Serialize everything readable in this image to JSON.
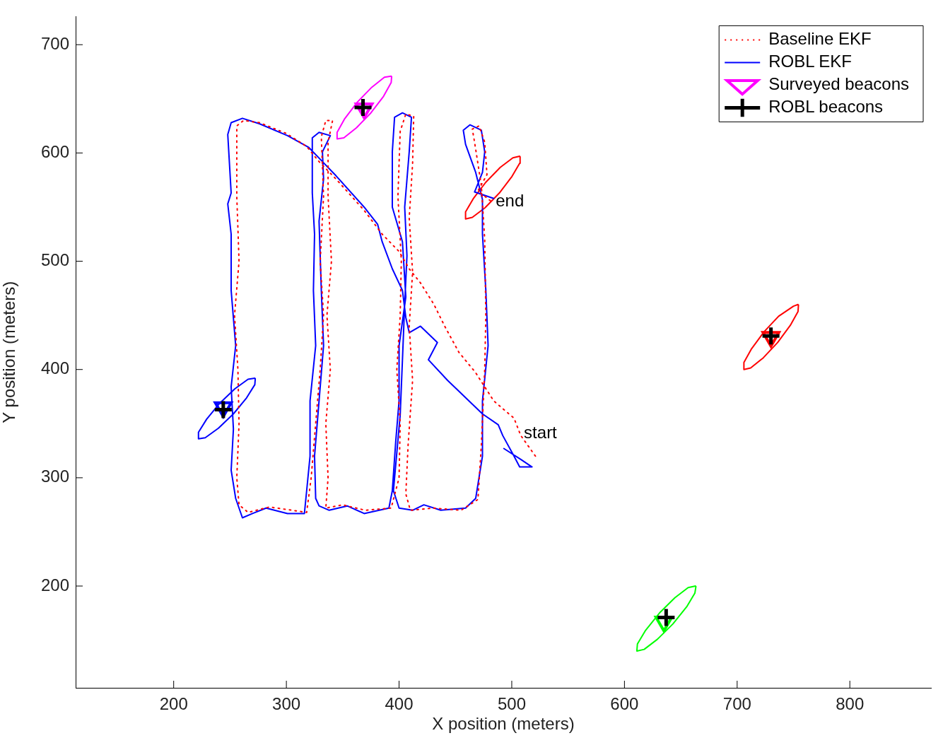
{
  "chart_data": {
    "type": "line",
    "xlabel": "X position (meters)",
    "ylabel": "Y position (meters)",
    "xlim": [
      113,
      872
    ],
    "ylim": [
      106,
      726
    ],
    "xticks": [
      200,
      300,
      400,
      500,
      600,
      700,
      800
    ],
    "yticks": [
      200,
      300,
      400,
      500,
      600,
      700
    ],
    "legend": "top right",
    "annotations": [
      {
        "text": "end",
        "x": 482,
        "y": 555
      },
      {
        "text": "start",
        "x": 507,
        "y": 341
      }
    ],
    "series": [
      {
        "name": "Baseline EKF",
        "line_style": "dotted",
        "color": "#ff0000",
        "x": [
          521,
          508,
          502,
          484,
          468,
          453,
          440,
          431,
          419,
          409,
          400,
          385,
          369,
          344,
          329,
          318,
          300,
          276,
          262,
          256,
          256,
          258,
          254,
          257,
          258,
          256,
          258,
          266,
          285,
          305,
          318,
          322,
          326,
          330,
          333,
          330,
          333,
          331,
          335,
          341,
          337,
          337,
          340,
          336,
          339,
          335,
          337,
          335,
          350,
          370,
          393,
          400,
          401,
          398,
          401,
          402,
          399,
          401,
          406,
          413,
          412,
          409,
          412,
          409,
          412,
          408,
          406,
          410,
          430,
          455,
          470,
          473,
          476,
          477,
          476,
          473,
          467,
          465,
          471,
          476,
          478,
          470,
          482
        ],
        "values": [
          320,
          339,
          355,
          371,
          397,
          416,
          441,
          460,
          480,
          493,
          509,
          525,
          547,
          576,
          592,
          606,
          618,
          628,
          630,
          625,
          560,
          500,
          450,
          400,
          350,
          300,
          275,
          268,
          273,
          270,
          268,
          300,
          350,
          400,
          450,
          500,
          560,
          615,
          630,
          630,
          610,
          560,
          500,
          450,
          400,
          350,
          300,
          272,
          275,
          270,
          272,
          300,
          350,
          400,
          450,
          500,
          560,
          620,
          636,
          634,
          590,
          540,
          490,
          440,
          390,
          330,
          285,
          270,
          272,
          270,
          280,
          330,
          400,
          450,
          520,
          570,
          610,
          622,
          625,
          610,
          580,
          565,
          555
        ]
      },
      {
        "name": "ROBL EKF",
        "line_style": "solid",
        "color": "#0000ff",
        "x": [
          493,
          508,
          518,
          507,
          502,
          492,
          488,
          474,
          459,
          443,
          426,
          434,
          419,
          409,
          406,
          403,
          394,
          385,
          381,
          369,
          344,
          332,
          320,
          301,
          276,
          261,
          251,
          248,
          251,
          248,
          251,
          251,
          255,
          251,
          253,
          251,
          255,
          261,
          270,
          282,
          301,
          316,
          318,
          321,
          321,
          326,
          324,
          325,
          323,
          323,
          329,
          339,
          332,
          333,
          329,
          331,
          333,
          329,
          325,
          326,
          329,
          338,
          354,
          369,
          391,
          394,
          397,
          400,
          400,
          406,
          403,
          394,
          394,
          396,
          403,
          411,
          409,
          405,
          407,
          405,
          403,
          401,
          395,
          400,
          412,
          422,
          437,
          459,
          468,
          474,
          474,
          479,
          477,
          474,
          474,
          468,
          459,
          457,
          463,
          473,
          476,
          474,
          467,
          484
        ],
        "values": [
          327,
          317,
          310,
          310,
          320,
          339,
          349,
          359,
          374,
          390,
          409,
          425,
          440,
          434,
          448,
          473,
          493,
          518,
          534,
          550,
          579,
          592,
          605,
          616,
          627,
          632,
          628,
          617,
          563,
          553,
          525,
          473,
          422,
          384,
          345,
          307,
          281,
          263,
          267,
          272,
          267,
          267,
          288,
          320,
          371,
          422,
          473,
          525,
          563,
          614,
          619,
          616,
          601,
          576,
          537,
          473,
          422,
          371,
          320,
          281,
          274,
          270,
          274,
          267,
          272,
          288,
          333,
          371,
          422,
          467,
          518,
          550,
          601,
          633,
          637,
          633,
          601,
          550,
          505,
          461,
          409,
          358,
          288,
          272,
          270,
          275,
          270,
          272,
          281,
          320,
          371,
          422,
          473,
          525,
          557,
          582,
          608,
          621,
          626,
          621,
          601,
          582,
          564,
          558
        ]
      },
      {
        "name": "Surveyed beacons",
        "type": "scatter",
        "marker": "triangle",
        "color": "#ff00ff",
        "colors": [
          "#ff00ff",
          "#ff0000",
          "#0000ff",
          "#00ff00"
        ],
        "x": [
          369,
          730,
          244,
          635
        ],
        "values": [
          641,
          430,
          365,
          167
        ]
      },
      {
        "name": "ROBL beacons",
        "type": "scatter",
        "marker": "cross",
        "color": "#000000",
        "x": [
          368,
          730,
          244,
          637
        ],
        "values": [
          642,
          431,
          363,
          171
        ]
      },
      {
        "line_style": "solid",
        "color": "#ff00ff",
        "x": [
          393,
          387,
          375.8,
          363,
          351.8,
          345,
          345,
          351,
          362.2,
          375,
          386.2,
          393,
          393.4
        ],
        "values": [
          671,
          670,
          660.7,
          647,
          631.7,
          619,
          613,
          614,
          623.3,
          637,
          652.3,
          665,
          670.5
        ]
      },
      {
        "line_style": "solid",
        "color": "#ff0000",
        "x": [
          754,
          750,
          736.8,
          724,
          712.8,
          706,
          706,
          712,
          723.2,
          736,
          747.2,
          754,
          754.4
        ],
        "values": [
          460,
          458.5,
          449.2,
          435,
          419.2,
          406.5,
          400,
          401.5,
          410.8,
          425,
          440.8,
          453.5,
          459.5
        ]
      },
      {
        "line_style": "solid",
        "color": "#0000ff",
        "x": [
          272,
          266,
          254.3,
          241,
          229.3,
          222,
          222,
          228,
          239.7,
          253,
          264.7,
          272,
          272.4
        ],
        "values": [
          392,
          391,
          382.2,
          369,
          354.2,
          342,
          336,
          337,
          345.8,
          359,
          373.8,
          386,
          391.5
        ]
      },
      {
        "line_style": "solid",
        "color": "#00ff00",
        "x": [
          663,
          656.5,
          644.8,
          631,
          618.8,
          611.5,
          611,
          617.5,
          629.2,
          643,
          655.2,
          662.5,
          663.4
        ],
        "values": [
          200,
          198.5,
          189.2,
          175,
          159.2,
          146.5,
          140,
          141.5,
          150.8,
          165,
          180.8,
          193.5,
          199.5
        ]
      },
      {
        "line_style": "solid",
        "color": "#ff0000",
        "x": [
          507,
          501,
          489.8,
          477,
          465.8,
          459,
          459,
          465,
          476.2,
          489,
          500.2,
          507,
          507.4
        ],
        "values": [
          597,
          595.5,
          586.7,
          573,
          557.7,
          545.5,
          539,
          540.5,
          549.3,
          563,
          578.3,
          590.5,
          596.5
        ]
      }
    ]
  }
}
